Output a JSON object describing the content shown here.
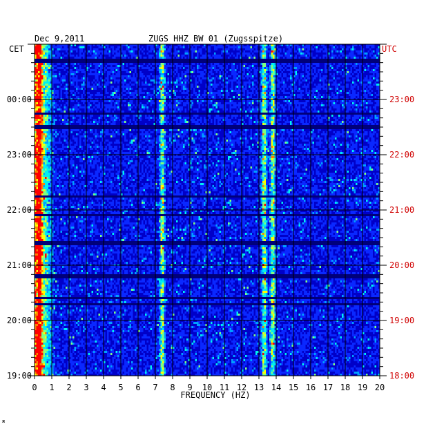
{
  "header": {
    "date": "Dec 9,2011",
    "station": "ZUGS HHZ BW 01 (Zugsspitze)"
  },
  "footer_mark": "ж",
  "chart_data": {
    "type": "heatmap",
    "title": "ZUGS HHZ BW 01 (Zugsspitze)",
    "date": "Dec 9,2011",
    "xlabel": "FREQUENCY (HZ)",
    "x_ticks": [
      "0",
      "1",
      "2",
      "3",
      "4",
      "5",
      "6",
      "7",
      "8",
      "9",
      "10",
      "11",
      "12",
      "13",
      "14",
      "15",
      "16",
      "17",
      "18",
      "19",
      "20"
    ],
    "xlim": [
      0,
      20
    ],
    "left_axis": {
      "label": "CET",
      "ticks": [
        "00:00",
        "23:00",
        "22:00",
        "21:00",
        "20:00",
        "19:00"
      ],
      "color": "#000000"
    },
    "right_axis": {
      "label": "UTC",
      "ticks": [
        "23:00",
        "22:00",
        "21:00",
        "20:00",
        "19:00",
        "18:00"
      ],
      "color": "#d00000"
    },
    "hours_span": 6,
    "grid": true,
    "colormap": [
      "#00007a",
      "#0000c8",
      "#0a28ff",
      "#00a0ff",
      "#00f0f0",
      "#80ff80",
      "#ffff00",
      "#ff8000",
      "#ff0000"
    ],
    "dominant_bands_hz": [
      0.3,
      7.4,
      13.3,
      13.8
    ],
    "dark_gap_rows_hours_from_top": [
      0.3,
      1.25,
      1.5,
      2.75,
      3.1,
      3.6,
      4.2,
      4.6,
      4.7
    ]
  }
}
